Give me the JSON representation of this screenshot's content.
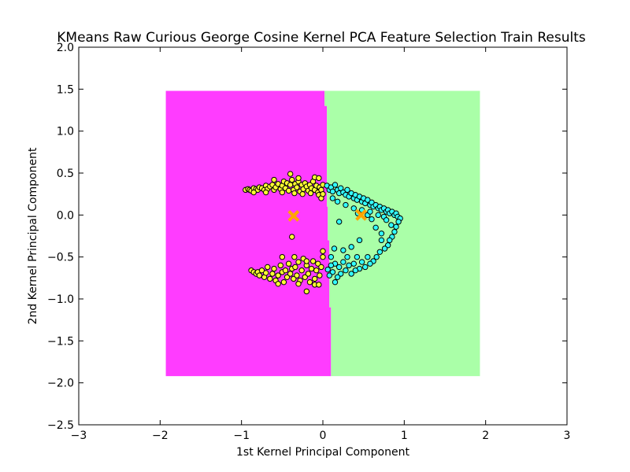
{
  "chart_data": {
    "type": "scatter",
    "title": "KMeans Raw Curious George Cosine Kernel PCA Feature Selection Train Results",
    "xlabel": "1st Kernel Principal Component",
    "ylabel": "2nd Kernel Principal Component",
    "xlim": [
      -3,
      3
    ],
    "ylim": [
      -2.5,
      2.0
    ],
    "xticks": [
      -3,
      -2,
      -1,
      0,
      1,
      2,
      3
    ],
    "yticks": [
      -2.5,
      -2.0,
      -1.5,
      -1.0,
      -0.5,
      0.0,
      0.5,
      1.0,
      1.5,
      2.0
    ],
    "xtick_labels": [
      "−3",
      "−2",
      "−1",
      "0",
      "1",
      "2",
      "3"
    ],
    "ytick_labels": [
      "−2.5",
      "−2.0",
      "−1.5",
      "−1.0",
      "−0.5",
      "0.0",
      "0.5",
      "1.0",
      "1.5",
      "2.0"
    ],
    "grid": false,
    "decision_regions": [
      {
        "cluster": 0,
        "color": "#ff3cff",
        "x_range": [
          -1.93,
          0.02
        ],
        "y_range": [
          -1.92,
          1.48
        ]
      },
      {
        "cluster": 1,
        "color": "#aaffa8",
        "x_range": [
          0.02,
          1.93
        ],
        "y_range": [
          -1.92,
          1.48
        ]
      }
    ],
    "boundary": [
      [
        0.02,
        1.48
      ],
      [
        0.02,
        1.3
      ],
      [
        0.05,
        1.3
      ],
      [
        0.05,
        0.1
      ],
      [
        0.06,
        0.1
      ],
      [
        0.06,
        -0.3
      ],
      [
        0.08,
        -0.3
      ],
      [
        0.08,
        -1.1
      ],
      [
        0.1,
        -1.1
      ],
      [
        0.1,
        -1.92
      ]
    ],
    "clusters": [
      {
        "color": "#ffff33",
        "points": [
          [
            -0.95,
            0.3
          ],
          [
            -0.92,
            0.31
          ],
          [
            -0.9,
            0.3
          ],
          [
            -0.88,
            0.29
          ],
          [
            -0.85,
            0.32
          ],
          [
            -0.82,
            0.31
          ],
          [
            -0.8,
            0.3
          ],
          [
            -0.78,
            0.33
          ],
          [
            -0.75,
            0.32
          ],
          [
            -0.72,
            0.3
          ],
          [
            -0.7,
            0.35
          ],
          [
            -0.68,
            0.31
          ],
          [
            -0.65,
            0.34
          ],
          [
            -0.62,
            0.36
          ],
          [
            -0.6,
            0.3
          ],
          [
            -0.58,
            0.33
          ],
          [
            -0.55,
            0.37
          ],
          [
            -0.52,
            0.31
          ],
          [
            -0.5,
            0.35
          ],
          [
            -0.48,
            0.4
          ],
          [
            -0.46,
            0.32
          ],
          [
            -0.44,
            0.38
          ],
          [
            -0.42,
            0.29
          ],
          [
            -0.4,
            0.36
          ],
          [
            -0.38,
            0.42
          ],
          [
            -0.36,
            0.3
          ],
          [
            -0.34,
            0.37
          ],
          [
            -0.32,
            0.33
          ],
          [
            -0.3,
            0.4
          ],
          [
            -0.28,
            0.28
          ],
          [
            -0.26,
            0.36
          ],
          [
            -0.24,
            0.31
          ],
          [
            -0.22,
            0.38
          ],
          [
            -0.2,
            0.34
          ],
          [
            -0.18,
            0.29
          ],
          [
            -0.16,
            0.36
          ],
          [
            -0.14,
            0.32
          ],
          [
            -0.12,
            0.4
          ],
          [
            -0.1,
            0.3
          ],
          [
            -0.08,
            0.35
          ],
          [
            -0.06,
            0.27
          ],
          [
            -0.04,
            0.33
          ],
          [
            -0.02,
            0.3
          ],
          [
            0.0,
            0.36
          ],
          [
            -0.4,
            0.49
          ],
          [
            -0.3,
            0.44
          ],
          [
            -0.1,
            0.45
          ],
          [
            -0.05,
            0.44
          ],
          [
            -0.6,
            0.42
          ],
          [
            -0.35,
            0.26
          ],
          [
            -0.25,
            0.25
          ],
          [
            -0.15,
            0.26
          ],
          [
            -0.05,
            0.24
          ],
          [
            -0.02,
            0.2
          ],
          [
            0.0,
            0.25
          ],
          [
            -0.5,
            0.27
          ],
          [
            -0.7,
            0.27
          ],
          [
            -0.85,
            0.27
          ],
          [
            -0.38,
            -0.26
          ],
          [
            -0.2,
            -0.91
          ],
          [
            -0.88,
            -0.66
          ],
          [
            -0.85,
            -0.68
          ],
          [
            -0.82,
            -0.7
          ],
          [
            -0.8,
            -0.68
          ],
          [
            -0.78,
            -0.72
          ],
          [
            -0.75,
            -0.66
          ],
          [
            -0.72,
            -0.74
          ],
          [
            -0.7,
            -0.69
          ],
          [
            -0.68,
            -0.62
          ],
          [
            -0.65,
            -0.76
          ],
          [
            -0.62,
            -0.7
          ],
          [
            -0.6,
            -0.64
          ],
          [
            -0.58,
            -0.78
          ],
          [
            -0.55,
            -0.72
          ],
          [
            -0.52,
            -0.6
          ],
          [
            -0.5,
            -0.68
          ],
          [
            -0.48,
            -0.8
          ],
          [
            -0.46,
            -0.66
          ],
          [
            -0.44,
            -0.74
          ],
          [
            -0.42,
            -0.58
          ],
          [
            -0.4,
            -0.7
          ],
          [
            -0.38,
            -0.64
          ],
          [
            -0.36,
            -0.76
          ],
          [
            -0.34,
            -0.62
          ],
          [
            -0.32,
            -0.72
          ],
          [
            -0.3,
            -0.56
          ],
          [
            -0.28,
            -0.78
          ],
          [
            -0.26,
            -0.66
          ],
          [
            -0.24,
            -0.52
          ],
          [
            -0.22,
            -0.74
          ],
          [
            -0.2,
            -0.6
          ],
          [
            -0.18,
            -0.7
          ],
          [
            -0.16,
            -0.8
          ],
          [
            -0.14,
            -0.64
          ],
          [
            -0.12,
            -0.55
          ],
          [
            -0.1,
            -0.76
          ],
          [
            -0.08,
            -0.66
          ],
          [
            -0.06,
            -0.58
          ],
          [
            -0.04,
            -0.72
          ],
          [
            -0.02,
            -0.62
          ],
          [
            0.0,
            -0.5
          ],
          [
            -0.5,
            -0.5
          ],
          [
            -0.35,
            -0.5
          ],
          [
            -0.2,
            -0.55
          ],
          [
            0.0,
            -0.43
          ],
          [
            -0.1,
            -0.83
          ],
          [
            -0.05,
            -0.83
          ],
          [
            -0.55,
            -0.82
          ],
          [
            -0.3,
            -0.82
          ]
        ]
      },
      {
        "color": "#33ffff",
        "points": [
          [
            0.05,
            0.35
          ],
          [
            0.08,
            0.3
          ],
          [
            0.1,
            0.33
          ],
          [
            0.12,
            0.28
          ],
          [
            0.15,
            0.36
          ],
          [
            0.18,
            0.3
          ],
          [
            0.2,
            0.26
          ],
          [
            0.22,
            0.32
          ],
          [
            0.25,
            0.27
          ],
          [
            0.28,
            0.24
          ],
          [
            0.3,
            0.3
          ],
          [
            0.32,
            0.22
          ],
          [
            0.35,
            0.26
          ],
          [
            0.38,
            0.2
          ],
          [
            0.4,
            0.24
          ],
          [
            0.42,
            0.18
          ],
          [
            0.45,
            0.22
          ],
          [
            0.48,
            0.16
          ],
          [
            0.5,
            0.2
          ],
          [
            0.52,
            0.14
          ],
          [
            0.55,
            0.18
          ],
          [
            0.58,
            0.12
          ],
          [
            0.6,
            0.15
          ],
          [
            0.62,
            0.1
          ],
          [
            0.65,
            0.12
          ],
          [
            0.68,
            0.08
          ],
          [
            0.7,
            0.1
          ],
          [
            0.72,
            0.06
          ],
          [
            0.75,
            0.08
          ],
          [
            0.78,
            0.04
          ],
          [
            0.8,
            0.06
          ],
          [
            0.82,
            0.02
          ],
          [
            0.85,
            0.04
          ],
          [
            0.88,
            0.0
          ],
          [
            0.9,
            0.02
          ],
          [
            0.92,
            -0.02
          ],
          [
            0.95,
            -0.04
          ],
          [
            0.93,
            -0.08
          ],
          [
            0.9,
            -0.14
          ],
          [
            0.88,
            -0.2
          ],
          [
            0.85,
            -0.26
          ],
          [
            0.82,
            -0.3
          ],
          [
            0.8,
            -0.36
          ],
          [
            0.76,
            -0.4
          ],
          [
            0.72,
            -0.3
          ],
          [
            0.7,
            -0.44
          ],
          [
            0.66,
            -0.5
          ],
          [
            0.62,
            -0.55
          ],
          [
            0.58,
            -0.58
          ],
          [
            0.55,
            -0.5
          ],
          [
            0.52,
            -0.62
          ],
          [
            0.48,
            -0.56
          ],
          [
            0.45,
            -0.64
          ],
          [
            0.42,
            -0.5
          ],
          [
            0.4,
            -0.66
          ],
          [
            0.38,
            -0.58
          ],
          [
            0.35,
            -0.7
          ],
          [
            0.32,
            -0.6
          ],
          [
            0.3,
            -0.5
          ],
          [
            0.28,
            -0.66
          ],
          [
            0.25,
            -0.56
          ],
          [
            0.22,
            -0.7
          ],
          [
            0.2,
            -0.62
          ],
          [
            0.18,
            -0.74
          ],
          [
            0.15,
            -0.58
          ],
          [
            0.12,
            -0.68
          ],
          [
            0.1,
            -0.6
          ],
          [
            0.08,
            -0.72
          ],
          [
            0.06,
            -0.65
          ],
          [
            0.14,
            -0.4
          ],
          [
            0.25,
            -0.42
          ],
          [
            0.35,
            -0.38
          ],
          [
            0.45,
            -0.3
          ],
          [
            0.43,
            0.02
          ],
          [
            0.2,
            -0.08
          ],
          [
            0.6,
            -0.05
          ],
          [
            0.75,
            -0.02
          ],
          [
            0.55,
            0.0
          ],
          [
            0.65,
            -0.15
          ],
          [
            0.12,
            0.2
          ],
          [
            0.18,
            0.16
          ],
          [
            0.28,
            0.12
          ],
          [
            0.38,
            0.08
          ],
          [
            0.48,
            0.06
          ],
          [
            0.58,
            0.04
          ],
          [
            0.68,
            0.0
          ],
          [
            0.78,
            -0.06
          ],
          [
            0.84,
            -0.12
          ],
          [
            0.72,
            -0.22
          ],
          [
            0.15,
            -0.8
          ],
          [
            0.1,
            -0.5
          ]
        ]
      }
    ],
    "centroids": [
      {
        "x": -0.36,
        "y": -0.01,
        "color": "#ffa500",
        "marker": "x"
      },
      {
        "x": 0.47,
        "y": 0.0,
        "color": "#ffa500",
        "marker": "x"
      }
    ]
  }
}
